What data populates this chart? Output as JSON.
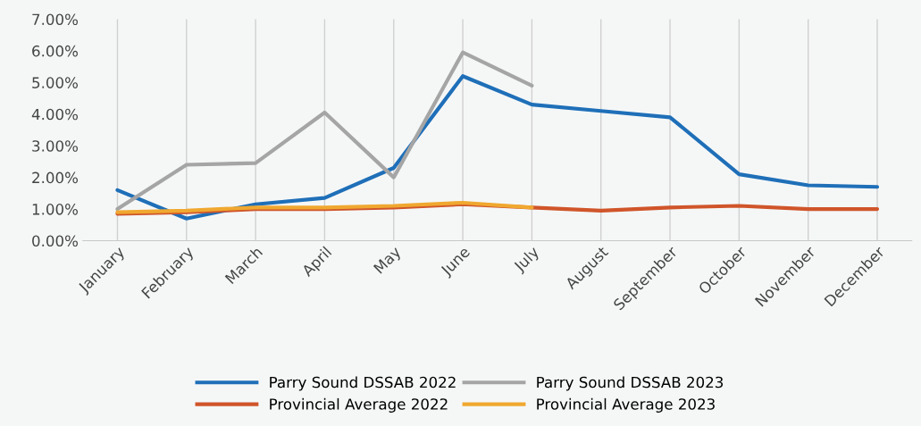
{
  "chart_data": {
    "type": "line",
    "categories": [
      "January",
      "February",
      "March",
      "April",
      "May",
      "June",
      "July",
      "August",
      "September",
      "October",
      "November",
      "December"
    ],
    "series": [
      {
        "name": "Parry Sound DSSAB 2022",
        "color": "#1f6fb8",
        "values": [
          1.6,
          0.7,
          1.15,
          1.35,
          2.3,
          5.2,
          4.3,
          4.1,
          3.9,
          2.1,
          1.75,
          1.7
        ]
      },
      {
        "name": "Provincial Average 2022",
        "color": "#d0552a",
        "values": [
          0.85,
          0.9,
          1.0,
          1.0,
          1.05,
          1.15,
          1.05,
          0.95,
          1.05,
          1.1,
          1.0,
          1.0
        ]
      },
      {
        "name": "Parry Sound DSSAB 2023",
        "color": "#a5a5a5",
        "values": [
          1.0,
          2.4,
          2.45,
          4.05,
          2.0,
          5.95,
          4.9,
          null,
          null,
          null,
          null,
          null
        ]
      },
      {
        "name": "Provincial Average 2023",
        "color": "#f0a830",
        "values": [
          0.9,
          0.95,
          1.05,
          1.05,
          1.1,
          1.2,
          1.05,
          null,
          null,
          null,
          null,
          null
        ]
      }
    ],
    "ylim": [
      0,
      7
    ],
    "yticks": [
      {
        "value": 0,
        "label": "0.00%"
      },
      {
        "value": 1,
        "label": "1.00%"
      },
      {
        "value": 2,
        "label": "2.00%"
      },
      {
        "value": 3,
        "label": "3.00%"
      },
      {
        "value": 4,
        "label": "4.00%"
      },
      {
        "value": 5,
        "label": "5.00%"
      },
      {
        "value": 6,
        "label": "6.00%"
      },
      {
        "value": 7,
        "label": "7.00%"
      }
    ],
    "grid": "x",
    "legend": "bottom",
    "marker": "none",
    "line_style": "solid"
  }
}
